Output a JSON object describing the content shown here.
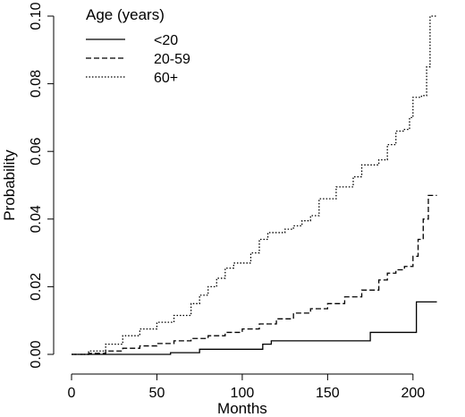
{
  "chart_data": {
    "type": "line",
    "title": "",
    "xlabel": "Months",
    "ylabel": "Probability",
    "xlim": [
      0,
      220
    ],
    "ylim": [
      0,
      0.1
    ],
    "xticks": [
      0,
      50,
      100,
      150,
      200
    ],
    "xtick_labels": [
      "0",
      "50",
      "100",
      "150",
      "200"
    ],
    "yticks": [
      0.0,
      0.02,
      0.04,
      0.06,
      0.08,
      0.1
    ],
    "ytick_labels": [
      "0.00",
      "0.02",
      "0.04",
      "0.06",
      "0.08",
      "0.10"
    ],
    "step": true,
    "legend": {
      "title": "Age (years)",
      "position": "top-left",
      "entries": [
        {
          "label": "<20",
          "line_style": "solid"
        },
        {
          "label": "20-59",
          "line_style": "dashed"
        },
        {
          "label": "60+",
          "line_style": "dotted"
        }
      ]
    },
    "series": [
      {
        "name": "<20",
        "line_style": "solid",
        "x": [
          0,
          58,
          75,
          112,
          117,
          175,
          202,
          214
        ],
        "y": [
          0.0,
          0.0005,
          0.0015,
          0.003,
          0.004,
          0.0065,
          0.0155,
          0.0155
        ]
      },
      {
        "name": "20-59",
        "line_style": "dashed",
        "x": [
          0,
          10,
          20,
          30,
          40,
          50,
          60,
          70,
          80,
          90,
          100,
          110,
          120,
          130,
          140,
          150,
          160,
          170,
          180,
          185,
          190,
          195,
          200,
          203,
          206,
          209,
          214
        ],
        "y": [
          0.0,
          0.0003,
          0.001,
          0.0018,
          0.0025,
          0.0032,
          0.004,
          0.0047,
          0.0055,
          0.0065,
          0.0075,
          0.009,
          0.0105,
          0.0122,
          0.0135,
          0.015,
          0.017,
          0.019,
          0.022,
          0.024,
          0.025,
          0.026,
          0.029,
          0.034,
          0.04,
          0.047,
          0.047
        ]
      },
      {
        "name": "60+",
        "line_style": "dotted",
        "x": [
          0,
          10,
          20,
          30,
          40,
          50,
          60,
          70,
          75,
          80,
          85,
          90,
          95,
          100,
          105,
          110,
          115,
          120,
          125,
          130,
          135,
          140,
          145,
          150,
          155,
          160,
          165,
          170,
          175,
          180,
          185,
          190,
          195,
          198,
          200,
          205,
          208,
          210,
          214
        ],
        "y": [
          0.0,
          0.001,
          0.003,
          0.0055,
          0.0075,
          0.0095,
          0.0115,
          0.015,
          0.0175,
          0.02,
          0.0225,
          0.0255,
          0.027,
          0.027,
          0.03,
          0.034,
          0.036,
          0.036,
          0.037,
          0.038,
          0.0395,
          0.041,
          0.046,
          0.046,
          0.0495,
          0.0495,
          0.0525,
          0.056,
          0.056,
          0.0575,
          0.062,
          0.066,
          0.0665,
          0.07,
          0.076,
          0.0765,
          0.085,
          0.1,
          0.1
        ]
      }
    ]
  }
}
